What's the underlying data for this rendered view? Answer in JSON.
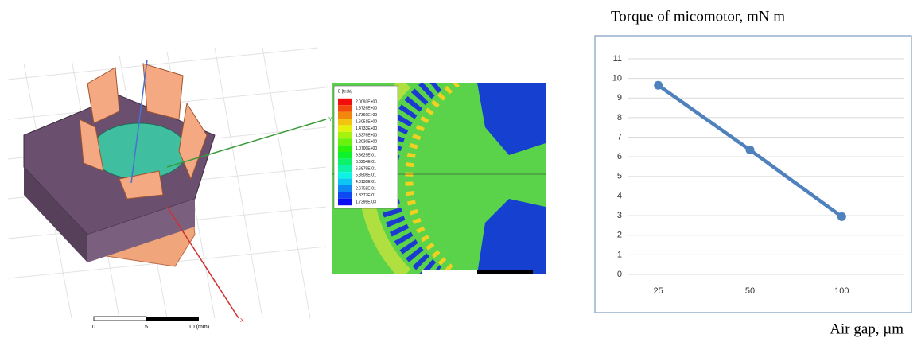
{
  "chart_data": {
    "type": "line",
    "title": "Torque of micomotor, mN m",
    "x_label": "Air gap, µm",
    "categories": [
      "25",
      "50",
      "100"
    ],
    "values": [
      9.65,
      6.35,
      2.95
    ],
    "color": "#4f81bd",
    "ylim": [
      0,
      11
    ],
    "yticks": [
      0,
      1,
      2,
      3,
      4,
      5,
      6,
      7,
      8,
      9,
      10,
      11
    ],
    "grid": true
  },
  "cad_view": {
    "scale_labels": [
      "0",
      "5",
      "10 (mm)"
    ],
    "axis_labels": [
      "Y",
      "X"
    ]
  },
  "field_plot": {
    "legend_title": "B [tesla]",
    "legend_values": [
      "2.0093E+00",
      "1.8726E+00",
      "1.7360E+00",
      "1.6051E+00",
      "1.4733E+00",
      "1.3376E+00",
      "1.2030E+00",
      "1.0700E+00",
      "9.3629E-01",
      "8.0254E-01",
      "6.6879E-01",
      "5.3505E-01",
      "4.0130E-01",
      "2.6752E-01",
      "1.3377E-01",
      "1.7395E-03"
    ]
  }
}
